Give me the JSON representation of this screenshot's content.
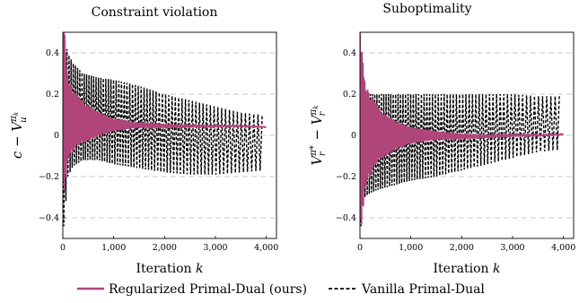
{
  "legend": {
    "items": [
      {
        "label": "Regularized Primal-Dual (ours)",
        "color": "#b0457a",
        "style": "solid"
      },
      {
        "label": "Vanilla Primal-Dual",
        "color": "#000000",
        "style": "dashed"
      }
    ],
    "placement": "bottom-center"
  },
  "chart_data": [
    {
      "type": "line",
      "title": "Constraint violation",
      "xlabel": "Iteration k",
      "ylabel": "c − V_u^{π_k}",
      "xlim": [
        0,
        4200
      ],
      "ylim": [
        -0.5,
        0.5
      ],
      "xticks": [
        0,
        1000,
        2000,
        3000,
        4000
      ],
      "xtick_labels": [
        "0",
        "1,000",
        "2,000",
        "3,000",
        "4,000"
      ],
      "yticks": [
        -0.4,
        -0.2,
        0,
        0.2,
        0.4
      ],
      "ytick_labels": [
        "−0.4",
        "−0.2",
        "0",
        "0.2",
        "0.4"
      ],
      "grid": "horizontal-dashed",
      "series": [
        {
          "name": "Regularized Primal-Dual (ours)",
          "x": [
            0,
            50,
            100,
            200,
            400,
            700,
            1000,
            1500,
            2000,
            2500,
            3000,
            3500,
            4000
          ],
          "center": [
            0.2,
            0.1,
            0.08,
            0.07,
            0.06,
            0.055,
            0.05,
            0.05,
            0.045,
            0.045,
            0.045,
            0.045,
            0.04
          ],
          "amplitude": [
            0.5,
            0.35,
            0.2,
            0.15,
            0.1,
            0.06,
            0.03,
            0.01,
            0.007,
            0.005,
            0.004,
            0.003,
            0.002
          ]
        },
        {
          "name": "Vanilla Primal-Dual",
          "x": [
            0,
            50,
            100,
            200,
            400,
            700,
            1000,
            1500,
            2000,
            2500,
            3000,
            3500,
            3950
          ],
          "upper": [
            0.5,
            0.45,
            0.4,
            0.35,
            0.3,
            0.28,
            0.27,
            0.24,
            0.2,
            0.17,
            0.14,
            0.11,
            0.1
          ],
          "lower": [
            -0.5,
            -0.35,
            -0.2,
            -0.15,
            -0.12,
            -0.12,
            -0.14,
            -0.16,
            -0.18,
            -0.19,
            -0.19,
            -0.18,
            -0.17
          ]
        }
      ]
    },
    {
      "type": "line",
      "title": "Suboptimality",
      "xlabel": "Iteration k",
      "ylabel": "V_r^{π*} − V_r^{π_k}",
      "xlim": [
        0,
        4200
      ],
      "ylim": [
        -0.5,
        0.5
      ],
      "xticks": [
        0,
        1000,
        2000,
        3000,
        4000
      ],
      "xtick_labels": [
        "0",
        "1,000",
        "2,000",
        "3,000",
        "4,000"
      ],
      "yticks": [
        -0.4,
        -0.2,
        0,
        0.2,
        0.4
      ],
      "ytick_labels": [
        "−0.4",
        "−0.2",
        "0",
        "0.2",
        "0.4"
      ],
      "grid": "horizontal-dashed",
      "series": [
        {
          "name": "Regularized Primal-Dual (ours)",
          "x": [
            0,
            50,
            100,
            200,
            400,
            700,
            1000,
            1500,
            2000,
            2500,
            3000,
            3500,
            4000
          ],
          "center": [
            0.0,
            0.0,
            0.0,
            0.0,
            0.0,
            0.0,
            0.0,
            0.0,
            -0.005,
            -0.005,
            0.0,
            0.0,
            0.005
          ],
          "amplitude": [
            0.5,
            0.4,
            0.25,
            0.2,
            0.12,
            0.07,
            0.04,
            0.02,
            0.01,
            0.006,
            0.005,
            0.004,
            0.003
          ]
        },
        {
          "name": "Vanilla Primal-Dual",
          "x": [
            0,
            50,
            100,
            200,
            400,
            700,
            1000,
            1500,
            2000,
            2500,
            3000,
            3500,
            3950
          ],
          "upper": [
            0.5,
            0.35,
            0.22,
            0.2,
            0.2,
            0.2,
            0.2,
            0.2,
            0.2,
            0.2,
            0.2,
            0.19,
            0.19
          ],
          "lower": [
            -0.5,
            -0.35,
            -0.3,
            -0.28,
            -0.26,
            -0.24,
            -0.22,
            -0.2,
            -0.17,
            -0.14,
            -0.11,
            -0.08,
            -0.07
          ]
        }
      ]
    }
  ]
}
